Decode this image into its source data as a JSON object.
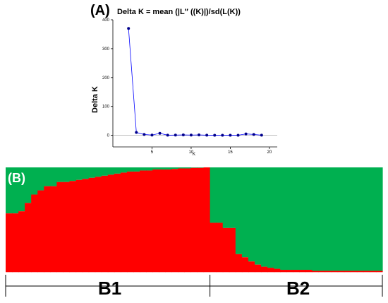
{
  "colors": {
    "line": "#0000ff",
    "point": "#00008b",
    "cluster1": "#ff0000",
    "cluster2": "#00b050",
    "axis": "#000000"
  },
  "chart_data": [
    {
      "type": "line",
      "panel_label": "(A)",
      "title": "Delta K = mean (|L″ ((K)|)/sd(L(K))",
      "xlabel": "K",
      "ylabel": "Delta K",
      "xlim": [
        0,
        21
      ],
      "ylim": [
        -40,
        400
      ],
      "xticks": [
        5,
        10,
        15,
        20
      ],
      "yticks": [
        0,
        100,
        200,
        300,
        400
      ],
      "grid": false,
      "series": [
        {
          "x": [
            2,
            3,
            4,
            5,
            6,
            7,
            8,
            9,
            10,
            11,
            12,
            13,
            14,
            15,
            16,
            17,
            18,
            19
          ],
          "values": [
            370,
            10,
            3,
            1,
            7,
            0.5,
            1,
            1.5,
            1,
            1.5,
            0.5,
            0.2,
            0.3,
            0.2,
            0.4,
            5,
            3,
            0.5
          ]
        }
      ]
    },
    {
      "type": "bar",
      "stacked": true,
      "panel_label": "(B)",
      "groups": [
        {
          "label": "B1",
          "count": 32
        },
        {
          "label": "B2",
          "count": 27
        }
      ],
      "series": [
        {
          "name": "",
          "color_key": "cluster1",
          "values": [
            0.56,
            0.56,
            0.58,
            0.66,
            0.74,
            0.78,
            0.82,
            0.82,
            0.86,
            0.86,
            0.87,
            0.88,
            0.89,
            0.9,
            0.91,
            0.92,
            0.93,
            0.94,
            0.95,
            0.96,
            0.96,
            0.97,
            0.97,
            0.98,
            0.98,
            0.98,
            0.985,
            0.99,
            0.99,
            0.995,
            0.995,
            1.0,
            0.47,
            0.47,
            0.42,
            0.42,
            0.17,
            0.14,
            0.1,
            0.07,
            0.05,
            0.04,
            0.03,
            0.02,
            0.02,
            0.02,
            0.02,
            0.02,
            0.01,
            0.01,
            0.01,
            0.01,
            0.01,
            0.01,
            0.01,
            0.01,
            0.01,
            0.01,
            0.01
          ]
        }
      ]
    }
  ]
}
